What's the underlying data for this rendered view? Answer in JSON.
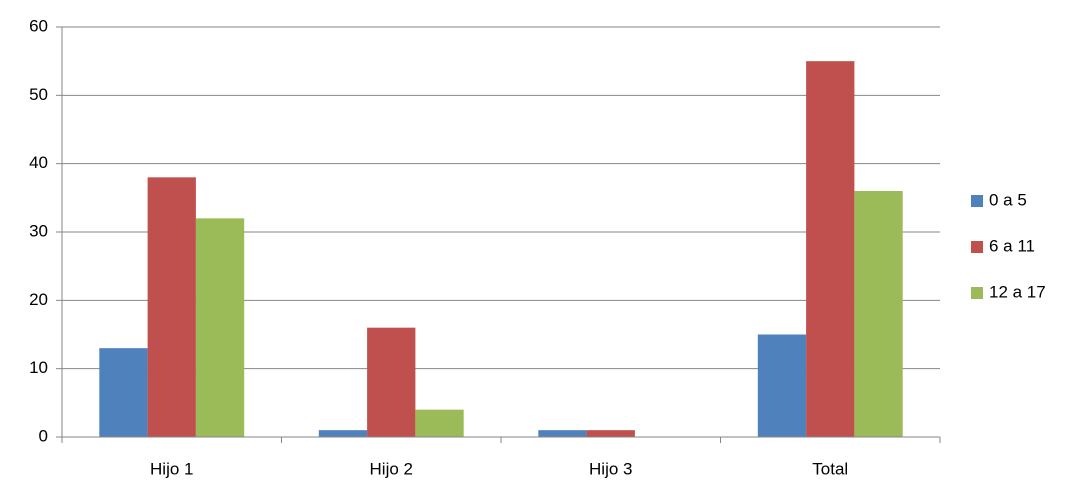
{
  "chart_data": {
    "type": "bar",
    "categories": [
      "Hijo 1",
      "Hijo 2",
      "Hijo 3",
      "Total"
    ],
    "series": [
      {
        "name": "0 a 5",
        "color": "#4f81bd",
        "values": [
          13,
          1,
          1,
          15
        ]
      },
      {
        "name": "6 a 11",
        "color": "#c0504d",
        "values": [
          38,
          16,
          1,
          55
        ]
      },
      {
        "name": "12 a 17",
        "color": "#9bbb59",
        "values": [
          32,
          4,
          0,
          36
        ]
      }
    ],
    "ylim": [
      0,
      60
    ],
    "yticks": [
      0,
      10,
      20,
      30,
      40,
      50,
      60
    ],
    "grid": true,
    "legend": "right"
  }
}
